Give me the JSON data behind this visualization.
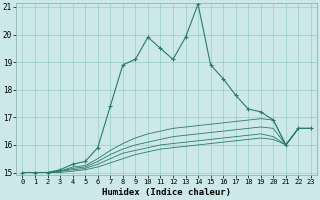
{
  "x": [
    0,
    1,
    2,
    3,
    4,
    5,
    6,
    7,
    8,
    9,
    10,
    11,
    12,
    13,
    14,
    15,
    16,
    17,
    18,
    19,
    20,
    21,
    22,
    23
  ],
  "line1": [
    15,
    15,
    15,
    15.1,
    15.3,
    15.4,
    15.9,
    17.4,
    18.9,
    19.1,
    19.9,
    19.5,
    19.1,
    19.9,
    21.1,
    18.9,
    18.4,
    17.8,
    17.3,
    17.2,
    16.9,
    16.0,
    16.6,
    16.6
  ],
  "line2": [
    15,
    15,
    15,
    15.05,
    15.2,
    15.25,
    15.5,
    15.8,
    16.05,
    16.25,
    16.4,
    16.5,
    16.6,
    16.65,
    16.7,
    16.75,
    16.8,
    16.85,
    16.9,
    16.95,
    16.9,
    16.0,
    16.6,
    16.6
  ],
  "line3": [
    15,
    15,
    15,
    15.05,
    15.15,
    15.2,
    15.4,
    15.65,
    15.85,
    16.0,
    16.1,
    16.2,
    16.3,
    16.35,
    16.4,
    16.45,
    16.5,
    16.55,
    16.6,
    16.65,
    16.6,
    16.0,
    16.6,
    16.6
  ],
  "line4": [
    15,
    15,
    15,
    15.05,
    15.1,
    15.15,
    15.3,
    15.5,
    15.7,
    15.8,
    15.9,
    16.0,
    16.05,
    16.1,
    16.15,
    16.2,
    16.25,
    16.3,
    16.35,
    16.4,
    16.3,
    16.0,
    16.6,
    16.6
  ],
  "line5": [
    15,
    15,
    15,
    15.0,
    15.05,
    15.1,
    15.2,
    15.35,
    15.5,
    15.65,
    15.75,
    15.85,
    15.9,
    15.95,
    16.0,
    16.05,
    16.1,
    16.15,
    16.2,
    16.25,
    16.2,
    16.0,
    16.6,
    16.6
  ],
  "ylim": [
    15,
    21
  ],
  "xlim": [
    -0.5,
    23.5
  ],
  "yticks": [
    15,
    16,
    17,
    18,
    19,
    20,
    21
  ],
  "xticks": [
    0,
    1,
    2,
    3,
    4,
    5,
    6,
    7,
    8,
    9,
    10,
    11,
    12,
    13,
    14,
    15,
    16,
    17,
    18,
    19,
    20,
    21,
    22,
    23
  ],
  "xlabel": "Humidex (Indice chaleur)",
  "color": "#2a7a6a",
  "bg_color": "#cce8e8",
  "grid_color": "#99cccc",
  "marker": "+"
}
